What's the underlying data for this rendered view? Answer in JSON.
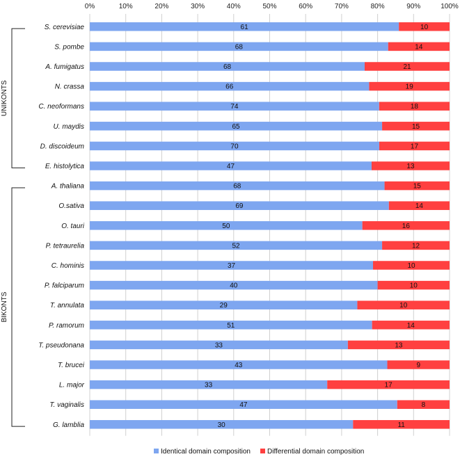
{
  "chart_data": {
    "type": "bar",
    "orientation": "horizontal",
    "stacked": true,
    "normalized_percent": true,
    "categories": [
      "S. cerevisiae",
      "S. pombe",
      "A. fumigatus",
      "N. crassa",
      "C. neoformans",
      "U. maydis",
      "D. discoideum",
      "E. histolytica",
      "A. thaliana",
      "O.sativa",
      "O. tauri",
      "P. tetraurelia",
      "C. hominis",
      "P. falciparum",
      "T. annulata",
      "P. ramorum",
      "T. pseudonana",
      "T. brucei",
      "L. major",
      "T. vaginalis",
      "G. lamblia"
    ],
    "series": [
      {
        "name": "Identical domain composition",
        "color": "#7ea6f0",
        "values": [
          61,
          68,
          68,
          66,
          74,
          65,
          70,
          47,
          68,
          69,
          50,
          52,
          37,
          40,
          29,
          51,
          33,
          43,
          33,
          47,
          30
        ]
      },
      {
        "name": "Differential domain composition",
        "color": "#ff4040",
        "values": [
          10,
          14,
          21,
          19,
          18,
          15,
          17,
          13,
          15,
          14,
          16,
          12,
          10,
          10,
          10,
          14,
          13,
          9,
          17,
          8,
          11
        ]
      }
    ],
    "x_ticks": [
      "0%",
      "10%",
      "20%",
      "30%",
      "40%",
      "50%",
      "60%",
      "70%",
      "80%",
      "90%",
      "100%"
    ],
    "xlim": [
      0,
      100
    ],
    "grid": true,
    "legend": "bottom",
    "groups": [
      {
        "label": "UNIKONTS",
        "from": "S. cerevisiae",
        "to": "E. histolytica"
      },
      {
        "label": "BIKONTS",
        "from": "A. thaliana",
        "to": "G. lamblia"
      }
    ]
  }
}
